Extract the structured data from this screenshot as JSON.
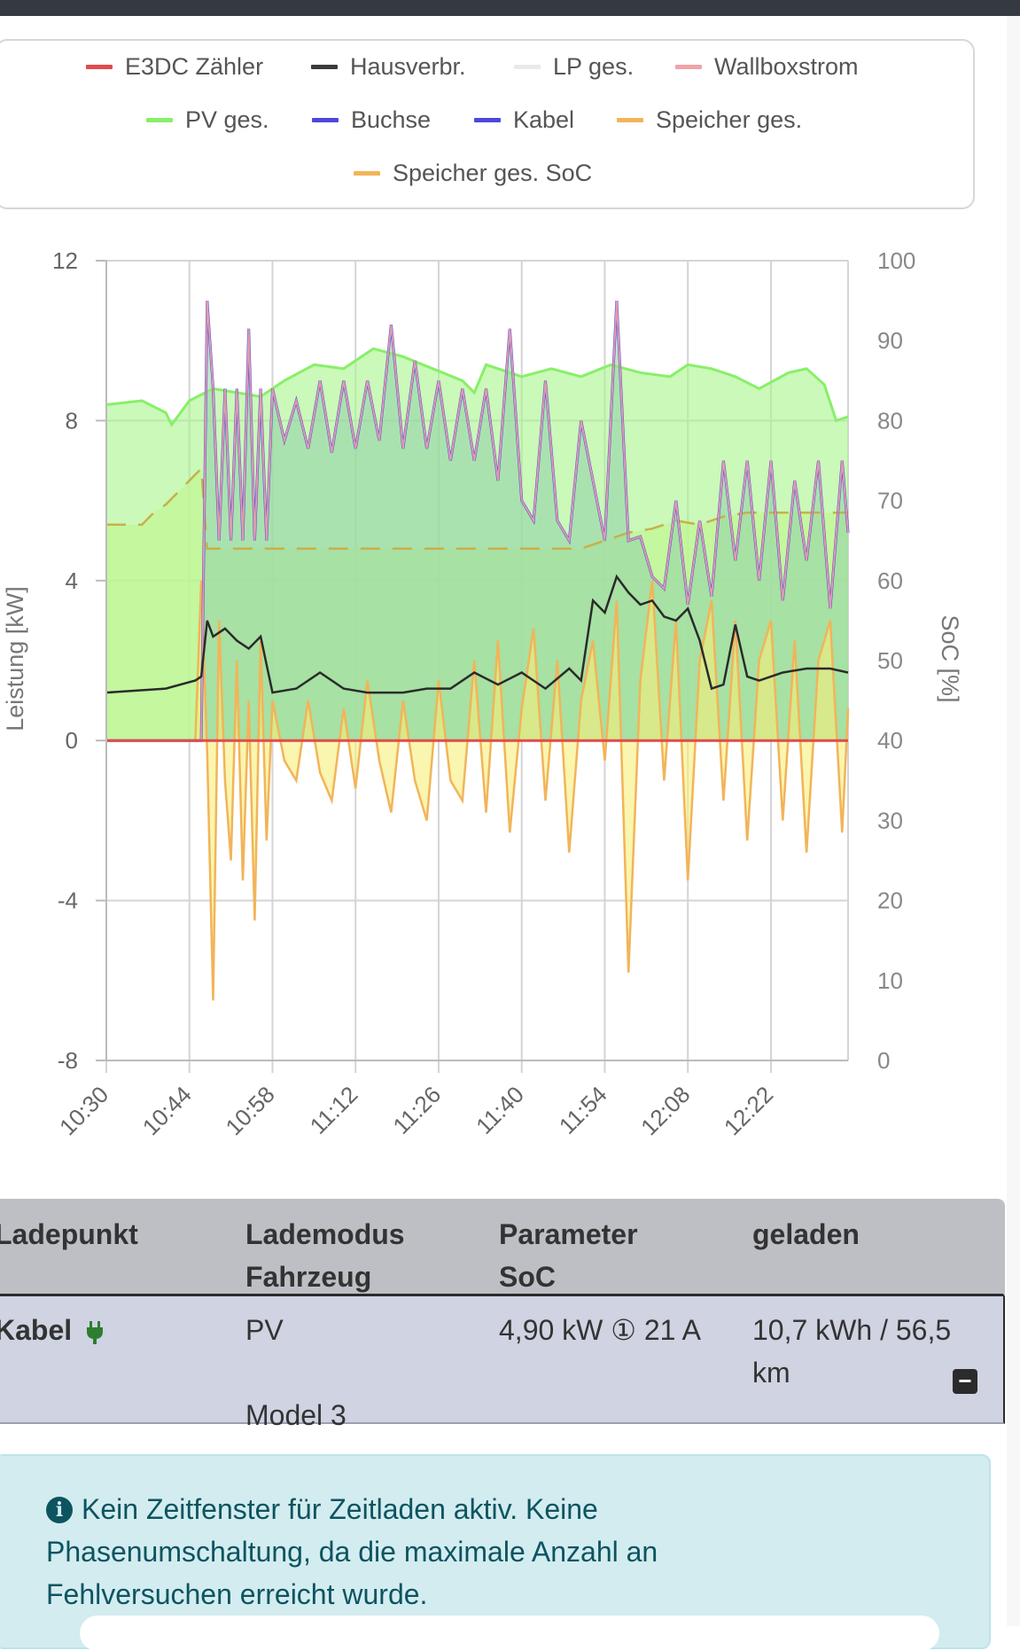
{
  "legend": [
    {
      "label": "E3DC Zähler",
      "color": "#e04b4b"
    },
    {
      "label": "Hausverbr.",
      "color": "#3a3a3a"
    },
    {
      "label": "LP ges.",
      "color": "#e9e9e9"
    },
    {
      "label": "Wallboxstrom",
      "color": "#f0a4a8"
    },
    {
      "label": "PV ges.",
      "color": "#88ef68"
    },
    {
      "label": "Buchse",
      "color": "#4d47dc"
    },
    {
      "label": "Kabel",
      "color": "#4d47dc"
    },
    {
      "label": "Speicher ges.",
      "color": "#f2b45a"
    },
    {
      "label": "Speicher ges. SoC",
      "color": "#f2b45a"
    }
  ],
  "chart_data": {
    "type": "line",
    "y_left": {
      "label": "Leistung [kW]",
      "min": -8,
      "max": 12,
      "ticks": [
        "12",
        "8",
        "4",
        "0",
        "-4",
        "-8"
      ]
    },
    "y_right": {
      "label": "SoC [%]",
      "min": 0,
      "max": 100,
      "ticks": [
        "100",
        "90",
        "80",
        "70",
        "60",
        "50",
        "40",
        "30",
        "20",
        "10",
        "0"
      ]
    },
    "x_ticks": [
      "10:30",
      "10:44",
      "10:58",
      "11:12",
      "11:26",
      "11:40",
      "11:54",
      "12:08",
      "12:22"
    ],
    "x_range_min": [
      0,
      125
    ],
    "series": [
      {
        "name": "PV ges.",
        "unit": "kW",
        "points": [
          [
            0,
            8.4
          ],
          [
            6,
            8.5
          ],
          [
            10,
            8.2
          ],
          [
            11,
            7.9
          ],
          [
            14,
            8.5
          ],
          [
            18,
            8.8
          ],
          [
            26,
            8.6
          ],
          [
            30,
            9.0
          ],
          [
            35,
            9.4
          ],
          [
            40,
            9.3
          ],
          [
            45,
            9.8
          ],
          [
            50,
            9.6
          ],
          [
            55,
            9.3
          ],
          [
            60,
            9.0
          ],
          [
            62,
            8.7
          ],
          [
            64,
            9.4
          ],
          [
            70,
            9.1
          ],
          [
            75,
            9.3
          ],
          [
            80,
            9.1
          ],
          [
            85,
            9.4
          ],
          [
            90,
            9.2
          ],
          [
            95,
            9.1
          ],
          [
            98,
            9.4
          ],
          [
            102,
            9.3
          ],
          [
            106,
            9.1
          ],
          [
            110,
            8.8
          ],
          [
            115,
            9.2
          ],
          [
            118,
            9.3
          ],
          [
            121,
            8.9
          ],
          [
            123,
            8.0
          ],
          [
            125,
            8.1
          ]
        ]
      },
      {
        "name": "Speicher ges.",
        "unit": "kW",
        "points": [
          [
            0,
            0
          ],
          [
            15,
            0
          ],
          [
            16,
            4
          ],
          [
            17,
            -0.3
          ],
          [
            18,
            -6.5
          ],
          [
            19,
            3
          ],
          [
            20,
            -1
          ],
          [
            21,
            -3
          ],
          [
            22,
            2
          ],
          [
            23,
            -3.5
          ],
          [
            24,
            1
          ],
          [
            25,
            -4.5
          ],
          [
            26,
            2.5
          ],
          [
            27,
            -2.5
          ],
          [
            28,
            1
          ],
          [
            30,
            -0.5
          ],
          [
            32,
            -1
          ],
          [
            34,
            1
          ],
          [
            36,
            -0.8
          ],
          [
            38,
            -1.5
          ],
          [
            40,
            0.8
          ],
          [
            42,
            -1.2
          ],
          [
            44,
            1.5
          ],
          [
            46,
            -0.5
          ],
          [
            48,
            -1.8
          ],
          [
            50,
            1
          ],
          [
            52,
            -1
          ],
          [
            54,
            -2
          ],
          [
            56,
            1.5
          ],
          [
            58,
            -1
          ],
          [
            60,
            -1.5
          ],
          [
            62,
            2
          ],
          [
            64,
            -1.8
          ],
          [
            66,
            2.5
          ],
          [
            68,
            -2.3
          ],
          [
            70,
            0.8
          ],
          [
            72,
            2.8
          ],
          [
            74,
            -1.5
          ],
          [
            76,
            2
          ],
          [
            78,
            -2.8
          ],
          [
            80,
            1
          ],
          [
            82,
            2.5
          ],
          [
            84,
            -0.5
          ],
          [
            86,
            3.5
          ],
          [
            88,
            -5.8
          ],
          [
            90,
            1.5
          ],
          [
            92,
            4
          ],
          [
            94,
            -1
          ],
          [
            96,
            3
          ],
          [
            98,
            -3.5
          ],
          [
            100,
            2
          ],
          [
            102,
            3.5
          ],
          [
            104,
            -1.5
          ],
          [
            106,
            3
          ],
          [
            108,
            -2.5
          ],
          [
            110,
            2
          ],
          [
            112,
            3
          ],
          [
            114,
            -2
          ],
          [
            116,
            2.5
          ],
          [
            118,
            -2.8
          ],
          [
            120,
            2
          ],
          [
            122,
            3
          ],
          [
            124,
            -2.3
          ],
          [
            125,
            0.8
          ]
        ]
      },
      {
        "name": "Buchse / Kabel",
        "unit": "kW",
        "points": [
          [
            0,
            0
          ],
          [
            16,
            0
          ],
          [
            17,
            11
          ],
          [
            18,
            8.8
          ],
          [
            19,
            5
          ],
          [
            20,
            8.8
          ],
          [
            21,
            5
          ],
          [
            22,
            8.8
          ],
          [
            23,
            5
          ],
          [
            24,
            10.3
          ],
          [
            25,
            5
          ],
          [
            26,
            8.8
          ],
          [
            27,
            5
          ],
          [
            28,
            8.8
          ],
          [
            30,
            7.5
          ],
          [
            32,
            8.5
          ],
          [
            34,
            7.3
          ],
          [
            36,
            9
          ],
          [
            38,
            7.2
          ],
          [
            40,
            9
          ],
          [
            42,
            7.3
          ],
          [
            44,
            9
          ],
          [
            46,
            7.5
          ],
          [
            48,
            10.4
          ],
          [
            50,
            7.3
          ],
          [
            52,
            9.5
          ],
          [
            54,
            7.3
          ],
          [
            56,
            9
          ],
          [
            58,
            7
          ],
          [
            60,
            8.8
          ],
          [
            62,
            7
          ],
          [
            64,
            8.8
          ],
          [
            66,
            6.5
          ],
          [
            68,
            10.3
          ],
          [
            70,
            6
          ],
          [
            72,
            5.5
          ],
          [
            74,
            9
          ],
          [
            76,
            5.5
          ],
          [
            78,
            5
          ],
          [
            80,
            8
          ],
          [
            82,
            6.5
          ],
          [
            84,
            5
          ],
          [
            86,
            11
          ],
          [
            88,
            5
          ],
          [
            90,
            5.1
          ],
          [
            92,
            4.1
          ],
          [
            94,
            3.8
          ],
          [
            96,
            6
          ],
          [
            98,
            3.4
          ],
          [
            100,
            5.5
          ],
          [
            102,
            3.6
          ],
          [
            104,
            7
          ],
          [
            106,
            4.5
          ],
          [
            108,
            7
          ],
          [
            110,
            4
          ],
          [
            112,
            7
          ],
          [
            114,
            3.5
          ],
          [
            116,
            6.5
          ],
          [
            118,
            4.5
          ],
          [
            120,
            7
          ],
          [
            122,
            3.3
          ],
          [
            124,
            7
          ],
          [
            125,
            5.2
          ]
        ]
      },
      {
        "name": "Hausverbr.",
        "unit": "kW",
        "points": [
          [
            0,
            1.2
          ],
          [
            10,
            1.3
          ],
          [
            15,
            1.5
          ],
          [
            16,
            1.6
          ],
          [
            17,
            3
          ],
          [
            18,
            2.6
          ],
          [
            20,
            2.8
          ],
          [
            22,
            2.5
          ],
          [
            24,
            2.3
          ],
          [
            26,
            2.6
          ],
          [
            28,
            1.2
          ],
          [
            32,
            1.3
          ],
          [
            36,
            1.7
          ],
          [
            40,
            1.3
          ],
          [
            44,
            1.2
          ],
          [
            50,
            1.2
          ],
          [
            54,
            1.3
          ],
          [
            58,
            1.3
          ],
          [
            62,
            1.7
          ],
          [
            66,
            1.4
          ],
          [
            70,
            1.7
          ],
          [
            74,
            1.3
          ],
          [
            78,
            1.8
          ],
          [
            80,
            1.5
          ],
          [
            82,
            3.5
          ],
          [
            84,
            3.2
          ],
          [
            86,
            4.1
          ],
          [
            88,
            3.7
          ],
          [
            90,
            3.4
          ],
          [
            92,
            3.5
          ],
          [
            94,
            3.1
          ],
          [
            96,
            3
          ],
          [
            98,
            3.3
          ],
          [
            100,
            2.5
          ],
          [
            102,
            1.3
          ],
          [
            104,
            1.4
          ],
          [
            106,
            2.9
          ],
          [
            108,
            1.6
          ],
          [
            110,
            1.5
          ],
          [
            114,
            1.7
          ],
          [
            118,
            1.8
          ],
          [
            122,
            1.8
          ],
          [
            125,
            1.7
          ]
        ]
      },
      {
        "name": "E3DC Zähler",
        "unit": "kW",
        "points": [
          [
            0,
            0
          ],
          [
            125,
            0
          ]
        ]
      },
      {
        "name": "Speicher ges. SoC",
        "unit": "%",
        "points": [
          [
            0,
            67
          ],
          [
            6,
            67
          ],
          [
            8,
            68.5
          ],
          [
            10,
            69.5
          ],
          [
            12,
            71
          ],
          [
            14,
            72.5
          ],
          [
            16,
            74
          ],
          [
            17,
            64
          ],
          [
            20,
            64
          ],
          [
            40,
            64
          ],
          [
            60,
            64
          ],
          [
            80,
            64
          ],
          [
            84,
            65
          ],
          [
            88,
            66
          ],
          [
            92,
            66.5
          ],
          [
            96,
            67.5
          ],
          [
            100,
            67
          ],
          [
            104,
            68
          ],
          [
            108,
            68.5
          ],
          [
            112,
            68.5
          ],
          [
            116,
            68.5
          ],
          [
            120,
            68.5
          ],
          [
            125,
            68.5
          ]
        ]
      }
    ]
  },
  "table": {
    "headers": [
      {
        "line1": "Ladepunkt",
        "line2": ""
      },
      {
        "line1": "Lademodus",
        "line2": "Fahrzeug"
      },
      {
        "line1": "Parameter",
        "line2": "SoC"
      },
      {
        "line1": "geladen",
        "line2": ""
      }
    ],
    "row": {
      "ladepunkt": "Kabel",
      "lademodus": "PV",
      "fahrzeug": "Model 3",
      "parameter": "4,90 kW ① 21 A",
      "geladen_line1": "10,7 kWh / 56,5",
      "geladen_line2": "km"
    }
  },
  "info": {
    "text_line1": "Kein Zeitfenster für Zeitladen aktiv. Keine",
    "text_line2": "Phasenumschaltung, da die maximale Anzahl an",
    "text_line3": "Fehlversuchen erreicht wurde."
  }
}
